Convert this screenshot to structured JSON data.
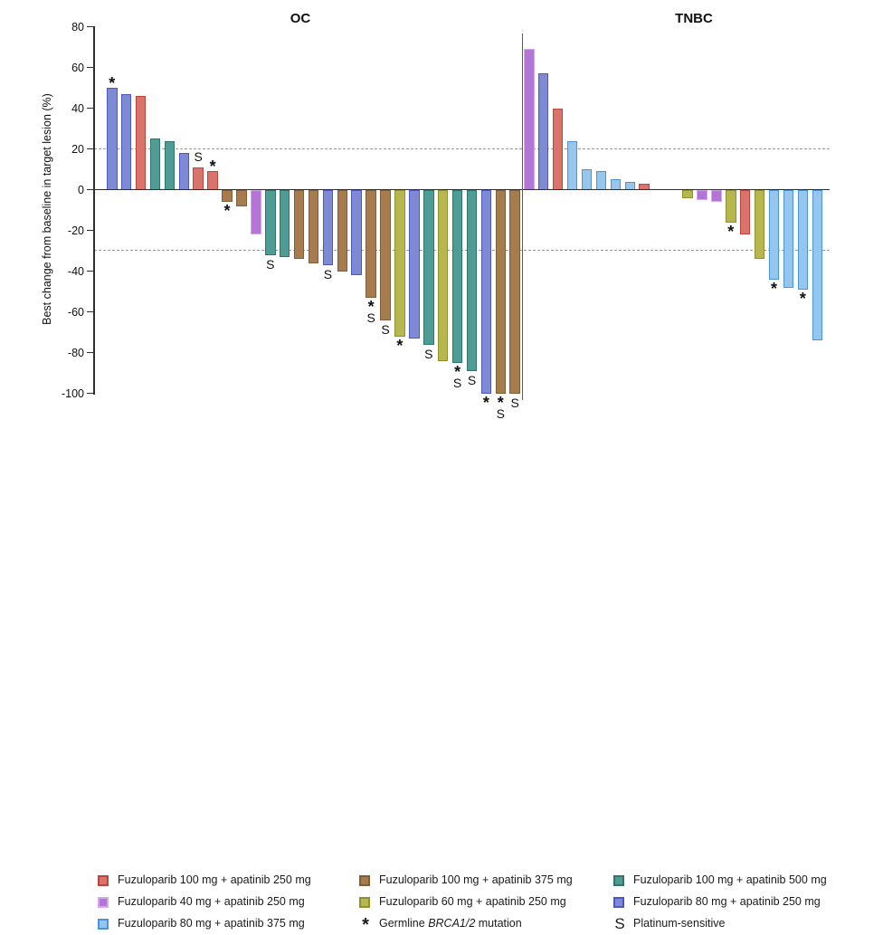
{
  "chart_data": {
    "type": "bar",
    "subtype": "waterfall",
    "title": "",
    "ylabel": "Best change from baseline in target lesion (%)",
    "ylim": [
      -100,
      80
    ],
    "yticks": [
      80,
      60,
      40,
      20,
      0,
      -20,
      -40,
      -60,
      -80,
      -100
    ],
    "reference_lines": [
      20,
      -30
    ],
    "grid": "dashed-reference-only",
    "marker_meanings": {
      "*": "Germline BRCA1/2 mutation",
      "S": "Platinum-sensitive"
    },
    "groups": {
      "red250": {
        "label": "Fuzuloparib 100 mg + apatinib 250 mg",
        "fill": "#D9736B",
        "border": "#BA4639"
      },
      "brown375": {
        "label": "Fuzuloparib 100 mg + apatinib 375 mg",
        "fill": "#A67C4F",
        "border": "#815E35"
      },
      "teal500": {
        "label": "Fuzuloparib 100 mg + apatinib 500 mg",
        "fill": "#4E9C94",
        "border": "#2F756D"
      },
      "purple250": {
        "label": "Fuzuloparib 40 mg + apatinib 250 mg",
        "fill": "#B575D6",
        "border": "#D2A7EC"
      },
      "yellow250": {
        "label": "Fuzuloparib 60 mg + apatinib 250 mg",
        "fill": "#B7B750",
        "border": "#90902F"
      },
      "blue250": {
        "label": "Fuzuloparib 80 mg + apatinib 250 mg",
        "fill": "#7F8AD4",
        "border": "#4D57C4"
      },
      "lblue375": {
        "label": "Fuzuloparib 80 mg + apatinib 375 mg",
        "fill": "#96C6EE",
        "border": "#4A94DC"
      }
    },
    "panels": [
      {
        "label": "OC",
        "bars": [
          {
            "v": 50,
            "g": "blue250",
            "m": "*"
          },
          {
            "v": 47,
            "g": "blue250",
            "m": ""
          },
          {
            "v": 46,
            "g": "red250",
            "m": ""
          },
          {
            "v": 25,
            "g": "teal500",
            "m": ""
          },
          {
            "v": 24,
            "g": "teal500",
            "m": ""
          },
          {
            "v": 18,
            "g": "blue250",
            "m": ""
          },
          {
            "v": 11,
            "g": "red250",
            "m": "S"
          },
          {
            "v": 9,
            "g": "red250",
            "m": "*"
          },
          {
            "v": -6,
            "g": "brown375",
            "m": "*"
          },
          {
            "v": -8,
            "g": "brown375",
            "m": ""
          },
          {
            "v": -22,
            "g": "purple250",
            "m": ""
          },
          {
            "v": -32,
            "g": "teal500",
            "m": "S"
          },
          {
            "v": -33,
            "g": "teal500",
            "m": ""
          },
          {
            "v": -34,
            "g": "brown375",
            "m": ""
          },
          {
            "v": -36,
            "g": "brown375",
            "m": ""
          },
          {
            "v": -37,
            "g": "blue250",
            "m": "S"
          },
          {
            "v": -40,
            "g": "brown375",
            "m": ""
          },
          {
            "v": -42,
            "g": "blue250",
            "m": ""
          },
          {
            "v": -53,
            "g": "brown375",
            "m": "*S"
          },
          {
            "v": -64,
            "g": "brown375",
            "m": "S"
          },
          {
            "v": -72,
            "g": "yellow250",
            "m": "*"
          },
          {
            "v": -73,
            "g": "blue250",
            "m": ""
          },
          {
            "v": -76,
            "g": "teal500",
            "m": "S"
          },
          {
            "v": -84,
            "g": "yellow250",
            "m": ""
          },
          {
            "v": -85,
            "g": "teal500",
            "m": "*S"
          },
          {
            "v": -89,
            "g": "teal500",
            "m": "S"
          },
          {
            "v": -100,
            "g": "blue250",
            "m": "*"
          },
          {
            "v": -100,
            "g": "brown375",
            "m": "*S"
          },
          {
            "v": -100,
            "g": "brown375",
            "m": "S"
          }
        ]
      },
      {
        "label": "TNBC",
        "bars": [
          {
            "v": 69,
            "g": "purple250",
            "m": ""
          },
          {
            "v": 57,
            "g": "blue250",
            "m": ""
          },
          {
            "v": 40,
            "g": "red250",
            "m": ""
          },
          {
            "v": 24,
            "g": "lblue375",
            "m": ""
          },
          {
            "v": 10,
            "g": "lblue375",
            "m": ""
          },
          {
            "v": 9,
            "g": "lblue375",
            "m": ""
          },
          {
            "v": 5,
            "g": "lblue375",
            "m": ""
          },
          {
            "v": 4,
            "g": "lblue375",
            "m": ""
          },
          {
            "v": 3,
            "g": "red250",
            "m": ""
          },
          {
            "v": 0,
            "g": "",
            "m": ""
          },
          {
            "v": 0,
            "g": "",
            "m": ""
          },
          {
            "v": -4,
            "g": "yellow250",
            "m": ""
          },
          {
            "v": -5,
            "g": "purple250",
            "m": ""
          },
          {
            "v": -6,
            "g": "purple250",
            "m": ""
          },
          {
            "v": -16,
            "g": "yellow250",
            "m": "*"
          },
          {
            "v": -22,
            "g": "red250",
            "m": ""
          },
          {
            "v": -34,
            "g": "yellow250",
            "m": ""
          },
          {
            "v": -44,
            "g": "lblue375",
            "m": "*"
          },
          {
            "v": -48,
            "g": "lblue375",
            "m": ""
          },
          {
            "v": -49,
            "g": "lblue375",
            "m": "*"
          },
          {
            "v": -74,
            "g": "lblue375",
            "m": ""
          }
        ]
      }
    ]
  },
  "legend": {
    "columns": [
      [
        {
          "swatch": "red250"
        },
        {
          "swatch": "purple250"
        },
        {
          "swatch": "lblue375"
        }
      ],
      [
        {
          "swatch": "brown375"
        },
        {
          "swatch": "yellow250"
        },
        {
          "symbol": "*",
          "pre": "Germline ",
          "italic": "BRCA1/2",
          "post": " mutation"
        }
      ],
      [
        {
          "swatch": "teal500"
        },
        {
          "swatch": "blue250"
        },
        {
          "symbol": "S",
          "label": "Platinum-sensitive"
        }
      ]
    ]
  }
}
